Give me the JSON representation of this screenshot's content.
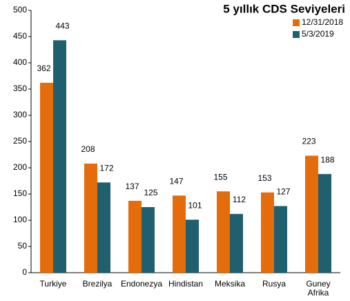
{
  "chart_data": {
    "type": "bar",
    "title": "5 yıllık CDS Seviyeleri",
    "categories": [
      "Turkiye",
      "Brezilya",
      "Endonezya",
      "Hindistan",
      "Meksika",
      "Rusya",
      "Guney Afrika"
    ],
    "series": [
      {
        "name": "12/31/2018",
        "color": "#e46c0a",
        "values": [
          362,
          208,
          137,
          147,
          155,
          153,
          223
        ]
      },
      {
        "name": "5/3/2019",
        "color": "#1f5f6e",
        "values": [
          443,
          172,
          125,
          101,
          112,
          127,
          188
        ]
      }
    ],
    "ylim": [
      0,
      500
    ],
    "yticks": [
      0,
      50,
      100,
      150,
      200,
      250,
      300,
      350,
      400,
      450,
      500
    ],
    "grid": false,
    "legend": "top-right"
  }
}
